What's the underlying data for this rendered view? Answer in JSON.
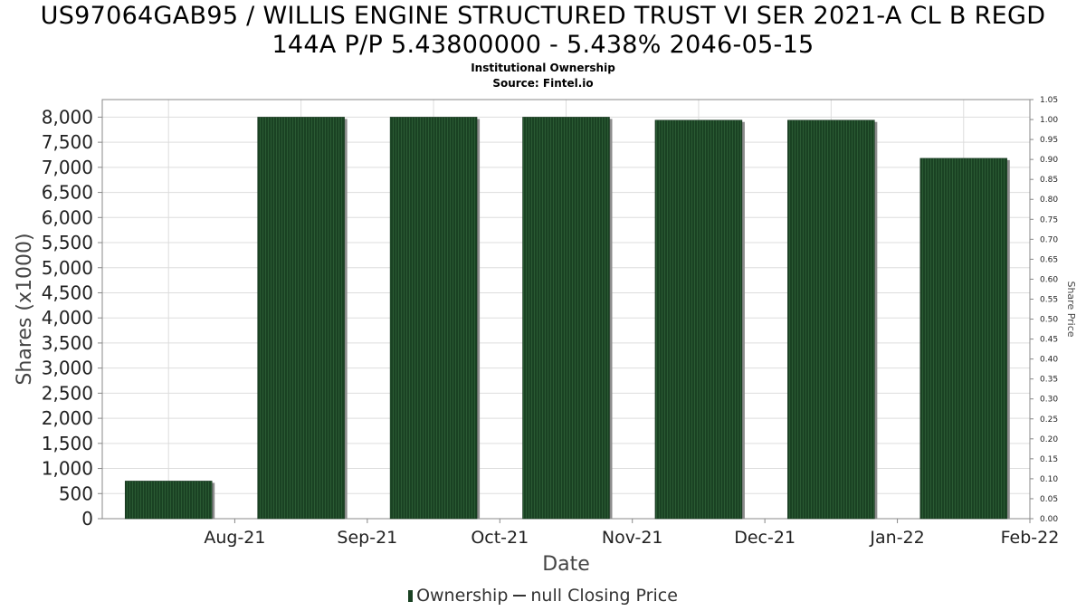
{
  "title_line1": "US97064GAB95 / WILLIS ENGINE STRUCTURED TRUST VI SER 2021-A CL B REGD",
  "title_line2": "144A P/P 5.43800000 - 5.438% 2046-05-15",
  "subtitle": "Institutional Ownership",
  "source": "Source: Fintel.io",
  "legend": {
    "ownership": "Ownership",
    "price": "null Closing Price"
  },
  "colors": {
    "bar": "#1a4223",
    "bar_shadow": "#8c8c8c",
    "grid": "#dddddd",
    "axis": "#888888"
  },
  "chart_data": {
    "type": "bar",
    "xlabel": "Date",
    "ylabel": "Shares (x1000)",
    "y2label": "Share Price",
    "categories": [
      "Aug-21",
      "Sep-21",
      "Oct-21",
      "Nov-21",
      "Dec-21",
      "Jan-22",
      "Feb-22"
    ],
    "series": [
      {
        "name": "Ownership",
        "values": [
          750,
          8000,
          8000,
          8000,
          7940,
          7940,
          7180
        ]
      }
    ],
    "ylim": [
      0,
      8350
    ],
    "yticks": [
      0,
      500,
      1000,
      1500,
      2000,
      2500,
      3000,
      3500,
      4000,
      4500,
      5000,
      5500,
      6000,
      6500,
      7000,
      7500,
      8000
    ],
    "ytick_labels": [
      "0",
      "500",
      "1,000",
      "1,500",
      "2,000",
      "2,500",
      "3,000",
      "3,500",
      "4,000",
      "4,500",
      "5,000",
      "5,500",
      "6,000",
      "6,500",
      "7,000",
      "7,500",
      "8,000"
    ],
    "y2lim": [
      0,
      1.05
    ],
    "y2ticks": [
      0,
      0.05,
      0.1,
      0.15,
      0.2,
      0.25,
      0.3,
      0.35,
      0.4,
      0.45,
      0.5,
      0.55,
      0.6,
      0.65,
      0.7,
      0.75,
      0.8,
      0.85,
      0.9,
      0.95,
      1.0,
      1.05
    ],
    "y2tick_labels": [
      "0.00",
      "0.05",
      "0.10",
      "0.15",
      "0.20",
      "0.25",
      "0.30",
      "0.35",
      "0.40",
      "0.45",
      "0.50",
      "0.55",
      "0.60",
      "0.65",
      "0.70",
      "0.75",
      "0.80",
      "0.85",
      "0.90",
      "0.95",
      "1.00",
      "1.05"
    ],
    "grid": true,
    "legend_position": "bottom"
  }
}
